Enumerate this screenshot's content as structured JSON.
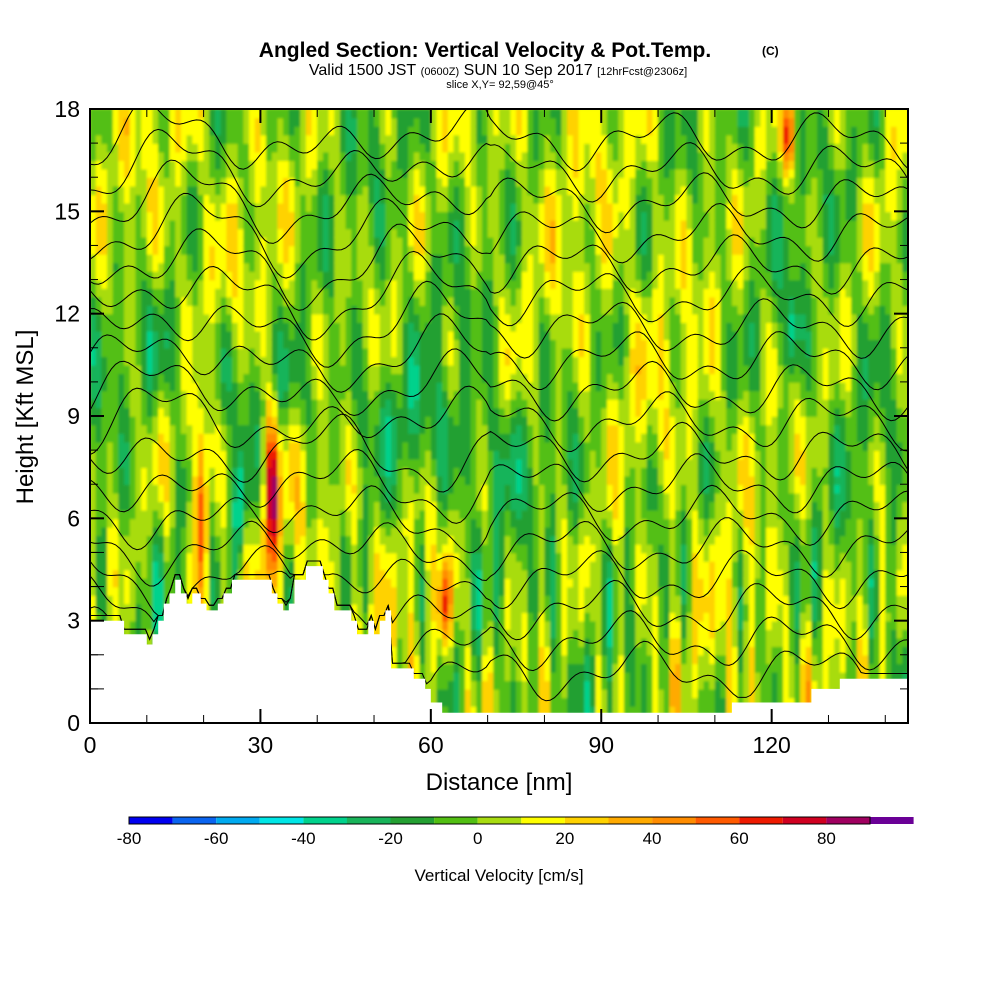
{
  "chart_data": {
    "type": "heatmap",
    "title": "Angled Section: Vertical Velocity & Pot.Temp.",
    "title_units": "(C)",
    "subtitle_parts": [
      "Valid 1500 JST",
      "(0600Z)",
      "SUN 10 Sep 2017",
      "[12hrFcst@2306z]"
    ],
    "subtitle2": "slice X,Y= 92,59@45°",
    "xlabel": "Distance [nm]",
    "ylabel": "Height [Kft MSL]",
    "xlim": [
      0,
      144
    ],
    "ylim": [
      0,
      18
    ],
    "x_ticks": [
      "0",
      "30",
      "60",
      "90",
      "120"
    ],
    "x_tick_values": [
      0,
      30,
      60,
      90,
      120
    ],
    "x_minor_step": 10,
    "y_ticks": [
      "0",
      "3",
      "6",
      "9",
      "12",
      "15",
      "18"
    ],
    "y_tick_values": [
      0,
      3,
      6,
      9,
      12,
      15,
      18
    ],
    "y_minor_step": 1,
    "grid": false,
    "colorbar": {
      "label": "Vertical Velocity [cm/s]",
      "tick_labels": [
        "-80",
        "-60",
        "-40",
        "-20",
        "0",
        "20",
        "40",
        "60",
        "80"
      ],
      "tick_values": [
        -80,
        -60,
        -40,
        -20,
        0,
        20,
        40,
        60,
        80
      ],
      "bounds": [
        -80,
        90
      ],
      "step": 10,
      "colors": [
        "#0000f0",
        "#0a64f0",
        "#00aaf0",
        "#00e6e6",
        "#00d28c",
        "#18b45a",
        "#24a032",
        "#52bf12",
        "#a8dc10",
        "#ffff00",
        "#ffd200",
        "#ffaa00",
        "#ff8c00",
        "#ff5a00",
        "#ee1a00",
        "#d00020",
        "#a00060",
        "#6a0096"
      ]
    },
    "terrain_profile": {
      "x": [
        0,
        6,
        6,
        10,
        10,
        11,
        11,
        12,
        12,
        13,
        13,
        14,
        14,
        15,
        15,
        16,
        16,
        17,
        17,
        18,
        18,
        19.5,
        19.5,
        20.5,
        20.5,
        22.5,
        22.5,
        23.5,
        23.5,
        25,
        25,
        32,
        32,
        33,
        33,
        34,
        34,
        35,
        35,
        36,
        36,
        38,
        38,
        41,
        41,
        42,
        42,
        43,
        43,
        46,
        46,
        47,
        47,
        49,
        49,
        50,
        50,
        51,
        51,
        52,
        52,
        53,
        53,
        57,
        57,
        59,
        59,
        60,
        60,
        62,
        62,
        64,
        64,
        65,
        65,
        66,
        66,
        67,
        67,
        68,
        68,
        79,
        79,
        83,
        83,
        91,
        91,
        105,
        105,
        113,
        113,
        127,
        127,
        132,
        132,
        144
      ],
      "height_kft": [
        3.0,
        3.0,
        2.6,
        2.6,
        2.3,
        2.3,
        2.6,
        2.6,
        3.0,
        3.0,
        3.5,
        3.5,
        3.8,
        3.8,
        4.2,
        4.2,
        3.8,
        3.8,
        3.5,
        3.5,
        3.8,
        3.8,
        3.5,
        3.5,
        3.3,
        3.3,
        3.5,
        3.5,
        3.8,
        3.8,
        4.2,
        4.2,
        3.8,
        3.8,
        3.5,
        3.5,
        3.3,
        3.3,
        3.5,
        3.5,
        4.2,
        4.2,
        4.6,
        4.6,
        4.2,
        4.2,
        3.8,
        3.8,
        3.3,
        3.3,
        3.0,
        3.0,
        2.6,
        2.6,
        3.0,
        3.0,
        2.6,
        2.6,
        3.0,
        3.0,
        3.3,
        3.3,
        1.6,
        1.6,
        1.3,
        1.3,
        1.0,
        1.0,
        0.6,
        0.6,
        0.3,
        0.3,
        0.3,
        0.3,
        0.3,
        0.3,
        0.3,
        0.3,
        0.3,
        0.3,
        0.3,
        0.3,
        0.3,
        0.3,
        0.3,
        0.3,
        0.3,
        0.3,
        0.3,
        0.3,
        0.6,
        0.6,
        1.0,
        1.0,
        1.3,
        1.3
      ]
    },
    "notable_cells": [
      {
        "x": 19.5,
        "y_range": [
          3.8,
          8.5
        ],
        "value": 65,
        "label": "updraft"
      },
      {
        "x": 32,
        "y_range": [
          4.5,
          9.0
        ],
        "value": 75,
        "label": "updraft"
      },
      {
        "x": 26.5,
        "y_range": [
          5.0,
          8.0
        ],
        "value": -45,
        "label": "downdraft"
      },
      {
        "x": 62.5,
        "y_range": [
          2.5,
          4.5
        ],
        "value": 55,
        "label": "updraft"
      },
      {
        "x": 123,
        "y_range": [
          16.5,
          18
        ],
        "value": 55,
        "label": "updraft"
      },
      {
        "x": 123.5,
        "y_range": [
          10.5,
          12.5
        ],
        "value": -35,
        "label": "downdraft"
      }
    ],
    "contours": {
      "field": "Potential Temperature (C)",
      "interval_kft": 1,
      "count": 18
    }
  }
}
